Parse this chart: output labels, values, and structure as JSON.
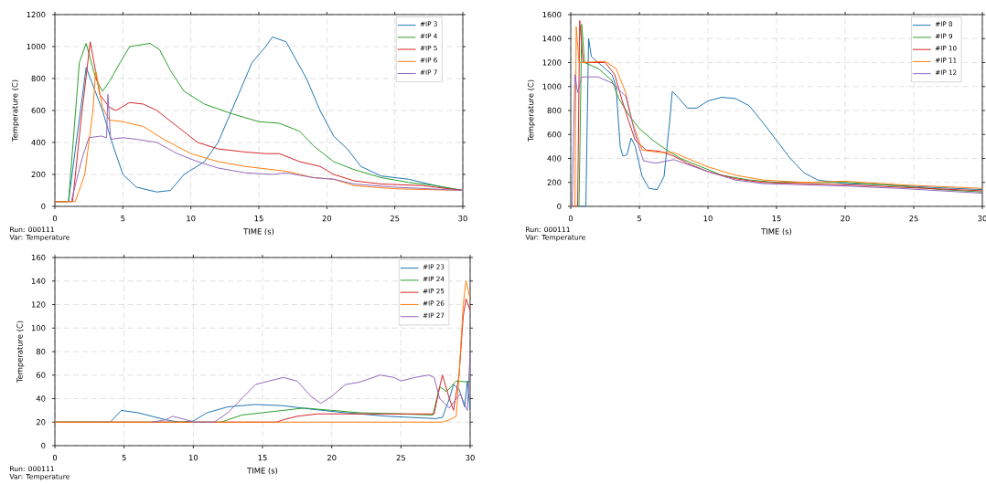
{
  "chart_data": [
    {
      "type": "line",
      "xlabel": "TIME (s)",
      "ylabel": "Temperature (C)",
      "xlim": [
        0,
        30
      ],
      "ylim": [
        0,
        1200
      ],
      "xticks": [
        0,
        5,
        10,
        15,
        20,
        25,
        30
      ],
      "yticks": [
        0,
        200,
        400,
        600,
        800,
        1000,
        1200
      ],
      "grid": true,
      "legend": "top right",
      "marker": "none",
      "line_style": "solid",
      "annotations": [
        "Run: 000111",
        "Var: Temperature"
      ],
      "series": [
        {
          "name": "#IP 3",
          "color": "#1f77b4",
          "x": [
            0,
            1,
            2.3,
            3.5,
            4.2,
            5,
            6,
            7.5,
            8.5,
            9.5,
            11,
            12,
            13.5,
            14.5,
            15.5,
            16,
            17,
            18.5,
            19.5,
            20.5,
            21.5,
            22.5,
            24,
            26,
            28.5,
            30
          ],
          "values": [
            30,
            30,
            870,
            600,
            400,
            200,
            120,
            90,
            100,
            200,
            280,
            400,
            700,
            900,
            1000,
            1060,
            1030,
            800,
            600,
            440,
            360,
            250,
            190,
            170,
            120,
            100
          ]
        },
        {
          "name": "#IP 4",
          "color": "#2ca02c",
          "x": [
            0,
            1,
            1.8,
            2.3,
            3,
            3.5,
            4,
            4.8,
            5.5,
            7,
            7.7,
            8.5,
            9.5,
            11,
            13,
            15,
            16.5,
            18,
            19,
            20.5,
            22,
            24,
            26,
            28,
            30
          ],
          "values": [
            30,
            30,
            900,
            1020,
            800,
            720,
            780,
            900,
            1000,
            1020,
            980,
            850,
            720,
            640,
            580,
            530,
            520,
            470,
            380,
            280,
            230,
            180,
            150,
            130,
            100
          ]
        },
        {
          "name": "#IP 5",
          "color": "#d62728",
          "x": [
            0,
            1.3,
            2,
            2.6,
            3.3,
            4,
            4.5,
            5.5,
            6.5,
            7.5,
            9,
            10.5,
            12,
            14,
            15.5,
            16.5,
            18,
            19.5,
            20.5,
            22,
            24,
            27,
            30
          ],
          "values": [
            30,
            30,
            600,
            1030,
            700,
            620,
            600,
            650,
            640,
            600,
            500,
            400,
            360,
            340,
            330,
            330,
            280,
            250,
            200,
            160,
            140,
            130,
            100
          ]
        },
        {
          "name": "#IP 6",
          "color": "#ff7f0e",
          "x": [
            0,
            1.5,
            2.2,
            2.8,
            3,
            3.5,
            4,
            5,
            6.5,
            8,
            10,
            12,
            14,
            16,
            17,
            19,
            20.5,
            22,
            25,
            30
          ],
          "values": [
            30,
            30,
            200,
            600,
            850,
            620,
            540,
            530,
            500,
            420,
            330,
            280,
            250,
            230,
            220,
            180,
            170,
            130,
            110,
            100
          ]
        },
        {
          "name": "#IP 7",
          "color": "#9467bd",
          "x": [
            1.2,
            2,
            2.5,
            3.4,
            3.8,
            3.9,
            4.1,
            5,
            6,
            7.5,
            9,
            10.5,
            12,
            14,
            16,
            17,
            19,
            20.5,
            22,
            25,
            30
          ],
          "values": [
            30,
            300,
            430,
            440,
            430,
            700,
            420,
            430,
            420,
            400,
            330,
            280,
            240,
            210,
            200,
            210,
            180,
            170,
            140,
            120,
            100
          ]
        }
      ]
    },
    {
      "type": "line",
      "xlabel": "TIME (s)",
      "ylabel": "Temperature (C)",
      "xlim": [
        0,
        30
      ],
      "ylim": [
        0,
        1600
      ],
      "xticks": [
        0,
        5,
        10,
        15,
        20,
        25,
        30
      ],
      "yticks": [
        0,
        200,
        400,
        600,
        800,
        1000,
        1200,
        1400,
        1600
      ],
      "grid": true,
      "legend": "top right",
      "marker": "none",
      "line_style": "solid",
      "annotations": [
        "Run: 000111",
        "Var: Temperature"
      ],
      "series": [
        {
          "name": "#IP 8",
          "color": "#1f77b4",
          "x": [
            0,
            1.1,
            1.3,
            1.5,
            2,
            3,
            3.3,
            3.6,
            3.8,
            4.1,
            4.4,
            4.7,
            5.2,
            5.7,
            6.3,
            6.8,
            7.2,
            7.4,
            7.9,
            8.5,
            9.2,
            10,
            11,
            12,
            13,
            14,
            15,
            16,
            17,
            18,
            20,
            23,
            26,
            30
          ],
          "values": [
            0,
            0,
            1400,
            1250,
            1200,
            1100,
            1000,
            500,
            420,
            430,
            570,
            500,
            250,
            150,
            140,
            250,
            700,
            960,
            900,
            820,
            820,
            880,
            910,
            900,
            840,
            700,
            550,
            400,
            280,
            220,
            190,
            180,
            160,
            140
          ]
        },
        {
          "name": "#IP 9",
          "color": "#2ca02c",
          "x": [
            0,
            0.6,
            0.8,
            1,
            2,
            3,
            3.5,
            4.3,
            5,
            6,
            7,
            8,
            9.5,
            11,
            13,
            15,
            20,
            24,
            27,
            30
          ],
          "values": [
            0,
            0,
            1520,
            1200,
            1150,
            1050,
            900,
            750,
            650,
            550,
            470,
            400,
            330,
            260,
            220,
            200,
            200,
            170,
            140,
            120
          ]
        },
        {
          "name": "#IP 10",
          "color": "#d62728",
          "x": [
            0,
            0.5,
            0.65,
            0.9,
            2.5,
            3.2,
            3.7,
            4.2,
            4.7,
            5.5,
            6.5,
            7.5,
            8.5,
            10,
            12,
            14,
            17,
            20,
            24,
            30
          ],
          "values": [
            0,
            0,
            1550,
            1200,
            1200,
            1100,
            900,
            720,
            550,
            470,
            460,
            420,
            360,
            290,
            230,
            200,
            190,
            180,
            160,
            130
          ]
        },
        {
          "name": "#IP 11",
          "color": "#ff7f0e",
          "x": [
            0,
            0.3,
            0.4,
            0.6,
            2.5,
            3.3,
            4,
            4.5,
            5.2,
            6.5,
            7.5,
            8.5,
            10,
            12,
            14,
            17,
            20,
            24,
            30
          ],
          "values": [
            0,
            0,
            1500,
            1200,
            1210,
            1150,
            950,
            700,
            470,
            450,
            450,
            400,
            330,
            260,
            220,
            200,
            210,
            180,
            150
          ]
        },
        {
          "name": "#IP 12",
          "color": "#9467bd",
          "x": [
            0,
            0.1,
            0.3,
            0.5,
            0.8,
            2,
            3,
            4,
            4.7,
            5.3,
            6.2,
            7.5,
            8.5,
            10,
            12,
            14,
            17,
            20,
            24,
            30
          ],
          "values": [
            0,
            0,
            1100,
            950,
            1080,
            1080,
            1030,
            920,
            600,
            380,
            360,
            390,
            350,
            290,
            220,
            190,
            180,
            170,
            150,
            110
          ]
        }
      ]
    },
    {
      "type": "line",
      "xlabel": "TIME (s)",
      "ylabel": "Temperature (C)",
      "xlim": [
        0,
        30
      ],
      "ylim": [
        0,
        160
      ],
      "xticks": [
        0,
        5,
        10,
        15,
        20,
        25,
        30
      ],
      "yticks": [
        0,
        20,
        40,
        60,
        80,
        100,
        120,
        140,
        160
      ],
      "grid": true,
      "legend": "top right",
      "marker": "none",
      "line_style": "solid",
      "annotations": [
        "Run: 000111",
        "Var: Temperature"
      ],
      "series": [
        {
          "name": "#IP 23",
          "color": "#1f77b4",
          "x": [
            0,
            4,
            4.8,
            6,
            8,
            9,
            10,
            11,
            12.5,
            14.5,
            16.5,
            18.5,
            21,
            24,
            27.5,
            28,
            28.5,
            28.8,
            29.2,
            29.6,
            29.8,
            30
          ],
          "values": [
            20,
            20,
            30,
            28,
            22,
            20,
            21,
            28,
            33,
            35,
            34,
            31,
            28,
            25,
            23,
            24,
            40,
            52,
            48,
            33,
            55,
            30
          ]
        },
        {
          "name": "#IP 24",
          "color": "#2ca02c",
          "x": [
            0,
            12,
            12.5,
            13.5,
            15,
            16.5,
            18,
            20,
            22,
            25,
            27.3,
            27.8,
            28.3,
            29,
            30
          ],
          "values": [
            20,
            20,
            22,
            26,
            28,
            30,
            32,
            30,
            28,
            27,
            26,
            50,
            46,
            55,
            54
          ]
        },
        {
          "name": "#IP 25",
          "color": "#d62728",
          "x": [
            0,
            16,
            16.5,
            17.5,
            19,
            24,
            27.4,
            27.8,
            28,
            28.5,
            28.8,
            29.2,
            29.5,
            29.7,
            30
          ],
          "values": [
            20,
            20,
            22,
            25,
            27,
            27,
            27,
            50,
            60,
            40,
            30,
            60,
            110,
            125,
            115
          ]
        },
        {
          "name": "#IP 26",
          "color": "#ff7f0e",
          "x": [
            0,
            28,
            28.5,
            29,
            29.2,
            29.5,
            29.7,
            30
          ],
          "values": [
            20,
            20,
            22,
            25,
            60,
            120,
            140,
            125
          ]
        },
        {
          "name": "#IP 27",
          "color": "#9467bd",
          "x": [
            7,
            8,
            8.5,
            9.5,
            10,
            11.5,
            12.5,
            13.5,
            14.5,
            15.5,
            16.5,
            17.5,
            18.5,
            19.2,
            20,
            21,
            22,
            23.5,
            24.5,
            25,
            26,
            27,
            27.4,
            27.8,
            28.5,
            29,
            29.3,
            29.6,
            29.8,
            30
          ],
          "values": [
            20,
            22,
            25,
            22,
            20,
            20,
            28,
            40,
            52,
            55,
            58,
            55,
            42,
            36,
            42,
            52,
            54,
            60,
            58,
            55,
            58,
            60,
            58,
            40,
            32,
            40,
            44,
            35,
            30,
            80
          ]
        }
      ]
    }
  ]
}
